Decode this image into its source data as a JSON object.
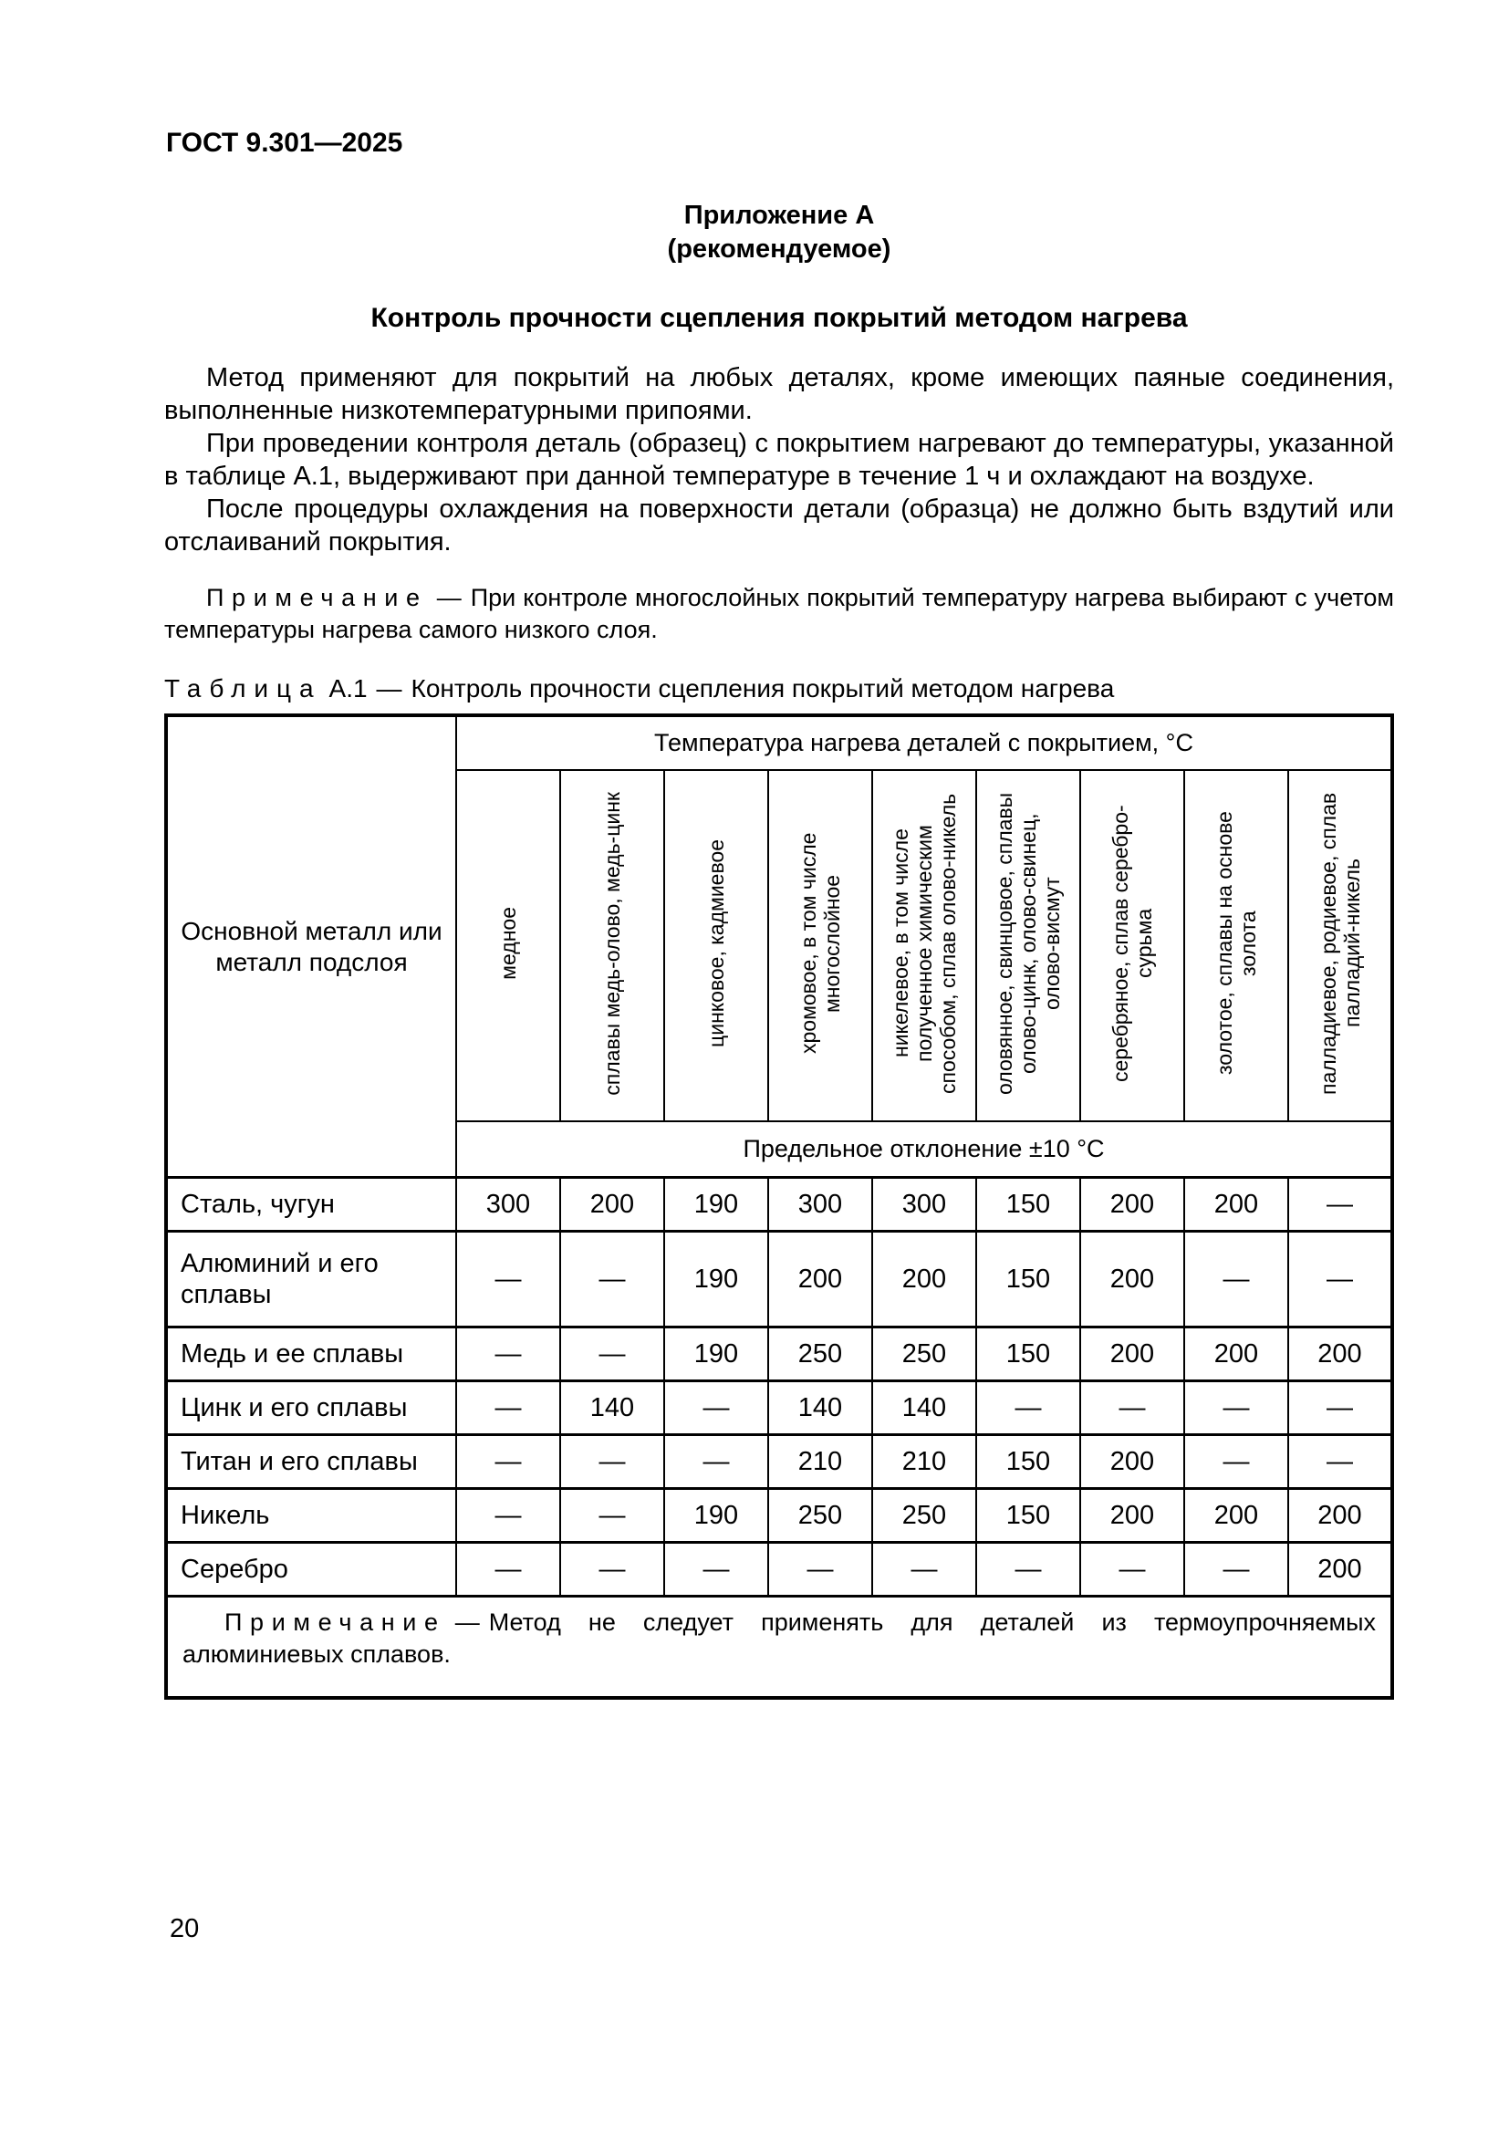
{
  "page": {
    "doc_code": "ГОСТ 9.301—2025",
    "page_number": "20"
  },
  "appendix": {
    "label": "Приложение А",
    "type": "(рекомендуемое)",
    "title": "Контроль прочности сцепления покрытий методом нагрева"
  },
  "paragraphs": [
    "Метод применяют для покрытий на любых деталях, кроме имеющих паяные соединения, выполненные низкотемпературными припоями.",
    "При проведении контроля деталь (образец) с покрытием нагревают до температуры, указанной в таблице А.1, выдерживают при данной температуре в течение 1 ч и охлаждают на воздухе.",
    "После процедуры охлаждения на поверхности детали (образца) не должно быть вздутий или отслаиваний покрытия."
  ],
  "note": {
    "label": "Примечание",
    "dash": "—",
    "text": "При контроле многослойных покрытий температуру нагрева выбирают с учетом температуры нагрева самого низкого слоя."
  },
  "table": {
    "caption_label": "Таблица",
    "caption_number": "А.1",
    "caption_dash": "—",
    "caption_text": "Контроль прочности сцепления покрытий методом нагрева",
    "corner_header": "Основной металл или металл подслоя",
    "span_header": "Температура нагрева деталей с покрытием, °С",
    "deviation_header": "Предельное отклонение ±10 °С",
    "columns": [
      "медное",
      "сплавы медь-олово, медь-цинк",
      "цинковое, кадмиевое",
      "хромовое, в том числе многослойное",
      "никелевое, в том числе полученное химическим способом, сплав олово-никель",
      "оловянное, свинцовое, сплавы олово-цинк, олово-свинец, олово-висмут",
      "серебряное, сплав серебро-сурьма",
      "золотое, сплавы на основе золота",
      "палладиевое, родиевое, сплав палладий-никель"
    ],
    "rows": [
      {
        "metal": "Сталь, чугун",
        "values": [
          "300",
          "200",
          "190",
          "300",
          "300",
          "150",
          "200",
          "200",
          "—"
        ]
      },
      {
        "metal": "Алюминий и его сплавы",
        "values": [
          "—",
          "—",
          "190",
          "200",
          "200",
          "150",
          "200",
          "—",
          "—"
        ]
      },
      {
        "metal": "Медь и ее сплавы",
        "values": [
          "—",
          "—",
          "190",
          "250",
          "250",
          "150",
          "200",
          "200",
          "200"
        ]
      },
      {
        "metal": "Цинк и его сплавы",
        "values": [
          "—",
          "140",
          "—",
          "140",
          "140",
          "—",
          "—",
          "—",
          "—"
        ]
      },
      {
        "metal": "Титан и его сплавы",
        "values": [
          "—",
          "—",
          "—",
          "210",
          "210",
          "150",
          "200",
          "—",
          "—"
        ]
      },
      {
        "metal": "Никель",
        "values": [
          "—",
          "—",
          "190",
          "250",
          "250",
          "150",
          "200",
          "200",
          "200"
        ]
      },
      {
        "metal": "Серебро",
        "values": [
          "—",
          "—",
          "—",
          "—",
          "—",
          "—",
          "—",
          "—",
          "200"
        ]
      }
    ],
    "table_note": {
      "label": "Примечание",
      "dash": "—",
      "text": "Метод не следует применять для деталей из термоупрочняемых алюминиевых сплавов."
    }
  }
}
